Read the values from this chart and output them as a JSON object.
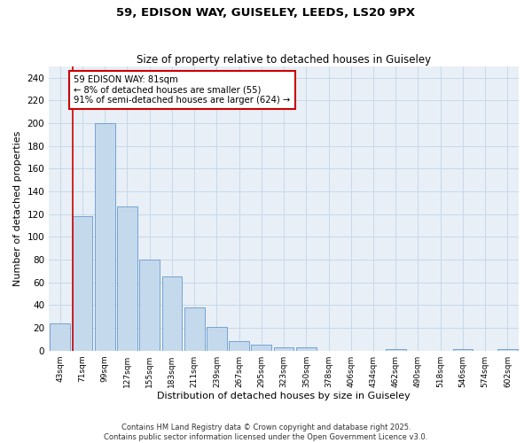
{
  "title1": "59, EDISON WAY, GUISELEY, LEEDS, LS20 9PX",
  "title2": "Size of property relative to detached houses in Guiseley",
  "xlabel": "Distribution of detached houses by size in Guiseley",
  "ylabel": "Number of detached properties",
  "categories": [
    "43sqm",
    "71sqm",
    "99sqm",
    "127sqm",
    "155sqm",
    "183sqm",
    "211sqm",
    "239sqm",
    "267sqm",
    "295sqm",
    "323sqm",
    "350sqm",
    "378sqm",
    "406sqm",
    "434sqm",
    "462sqm",
    "490sqm",
    "518sqm",
    "546sqm",
    "574sqm",
    "602sqm"
  ],
  "values": [
    24,
    118,
    200,
    127,
    80,
    65,
    38,
    21,
    8,
    5,
    3,
    3,
    0,
    0,
    0,
    1,
    0,
    0,
    1,
    0,
    1
  ],
  "bar_color": "#c5d9ed",
  "bar_edge_color": "#6699cc",
  "grid_color": "#c8d8e8",
  "background_color": "#e8eff7",
  "vline_color": "#cc0000",
  "annotation_text": "59 EDISON WAY: 81sqm\n← 8% of detached houses are smaller (55)\n91% of semi-detached houses are larger (624) →",
  "annotation_box_color": "#cc0000",
  "ylim": [
    0,
    250
  ],
  "yticks": [
    0,
    20,
    40,
    60,
    80,
    100,
    120,
    140,
    160,
    180,
    200,
    220,
    240
  ],
  "footer1": "Contains HM Land Registry data © Crown copyright and database right 2025.",
  "footer2": "Contains public sector information licensed under the Open Government Licence v3.0."
}
